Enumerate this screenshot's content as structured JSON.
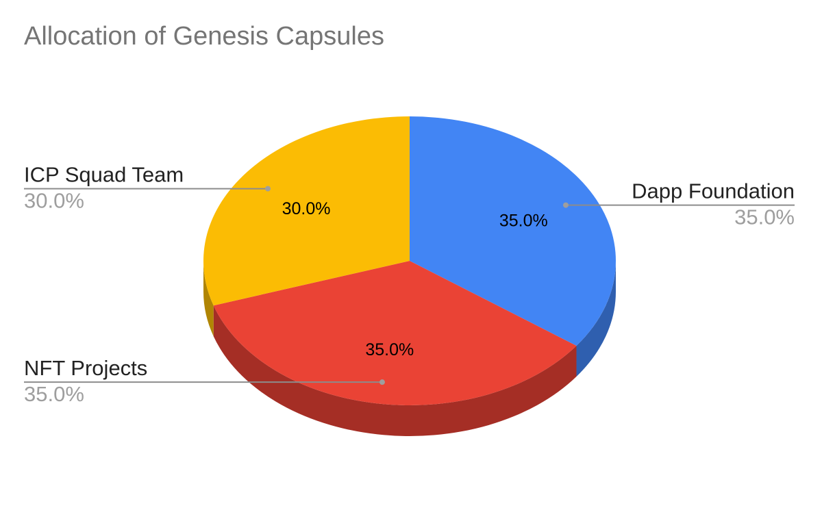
{
  "chart_data": {
    "type": "pie",
    "title": "Allocation of Genesis Capsules",
    "slices": [
      {
        "label": "Dapp Foundation",
        "value": 35.0,
        "display": "35.0%",
        "color": "#4285F4",
        "side_color": "#2F5FAF",
        "callout_side": "right"
      },
      {
        "label": "NFT Projects",
        "value": 35.0,
        "display": "35.0%",
        "color": "#EA4335",
        "side_color": "#A52E25",
        "callout_side": "left"
      },
      {
        "label": "ICP Squad Team",
        "value": 30.0,
        "display": "30.0%",
        "color": "#FBBC04",
        "side_color": "#B08504",
        "callout_side": "left"
      }
    ],
    "style": "3d",
    "legend": "none"
  }
}
